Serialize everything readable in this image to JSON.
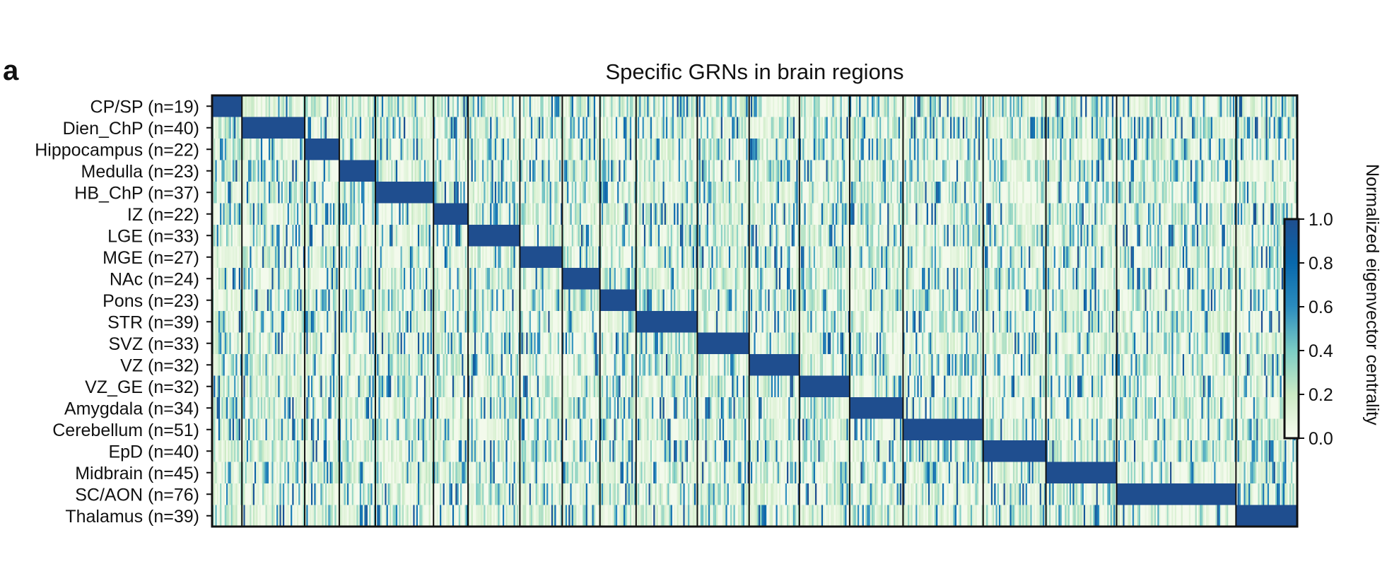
{
  "panel_letter": "a",
  "chart_data": {
    "type": "heatmap",
    "title": "Specific GRNs in brain regions",
    "xlabel": "",
    "ylabel": "",
    "rows": [
      {
        "region": "CP/SP",
        "n": 19,
        "label": "CP/SP (n=19)"
      },
      {
        "region": "Dien_ChP",
        "n": 40,
        "label": "Dien_ChP (n=40)"
      },
      {
        "region": "Hippocampus",
        "n": 22,
        "label": "Hippocampus (n=22)"
      },
      {
        "region": "Medulla",
        "n": 23,
        "label": "Medulla (n=23)"
      },
      {
        "region": "HB_ChP",
        "n": 37,
        "label": "HB_ChP (n=37)"
      },
      {
        "region": "IZ",
        "n": 22,
        "label": "IZ (n=22)"
      },
      {
        "region": "LGE",
        "n": 33,
        "label": "LGE (n=33)"
      },
      {
        "region": "MGE",
        "n": 27,
        "label": "MGE (n=27)"
      },
      {
        "region": "NAc",
        "n": 24,
        "label": "NAc (n=24)"
      },
      {
        "region": "Pons",
        "n": 23,
        "label": "Pons (n=23)"
      },
      {
        "region": "STR",
        "n": 39,
        "label": "STR (n=39)"
      },
      {
        "region": "SVZ",
        "n": 33,
        "label": "SVZ (n=33)"
      },
      {
        "region": "VZ",
        "n": 32,
        "label": "VZ (n=32)"
      },
      {
        "region": "VZ_GE",
        "n": 32,
        "label": "VZ_GE (n=32)"
      },
      {
        "region": "Amygdala",
        "n": 34,
        "label": "Amygdala (n=34)"
      },
      {
        "region": "Cerebellum",
        "n": 51,
        "label": "Cerebellum (n=51)"
      },
      {
        "region": "EpD",
        "n": 40,
        "label": "EpD (n=40)"
      },
      {
        "region": "Midbrain",
        "n": 45,
        "label": "Midbrain (n=45)"
      },
      {
        "region": "SC/AON",
        "n": 76,
        "label": "SC/AON (n=76)"
      },
      {
        "region": "Thalamus",
        "n": 39,
        "label": "Thalamus (n=39)"
      }
    ],
    "diagonal_value": 1.0,
    "off_diagonal": "sparse values mostly between 0.0 and 0.3, with scattered values up to 1.0",
    "colorbar": {
      "label": "Normalized eigenvector centrality",
      "min": 0.0,
      "max": 1.0,
      "ticks": [
        "0.0",
        "0.2",
        "0.4",
        "0.6",
        "0.8",
        "1.0"
      ],
      "colors": [
        "#f7fcf0",
        "#ccebc5",
        "#7bccc4",
        "#2b8cbe",
        "#0868ac",
        "#1f4e8f"
      ]
    },
    "grid": false,
    "legend": "colorbar-right"
  }
}
